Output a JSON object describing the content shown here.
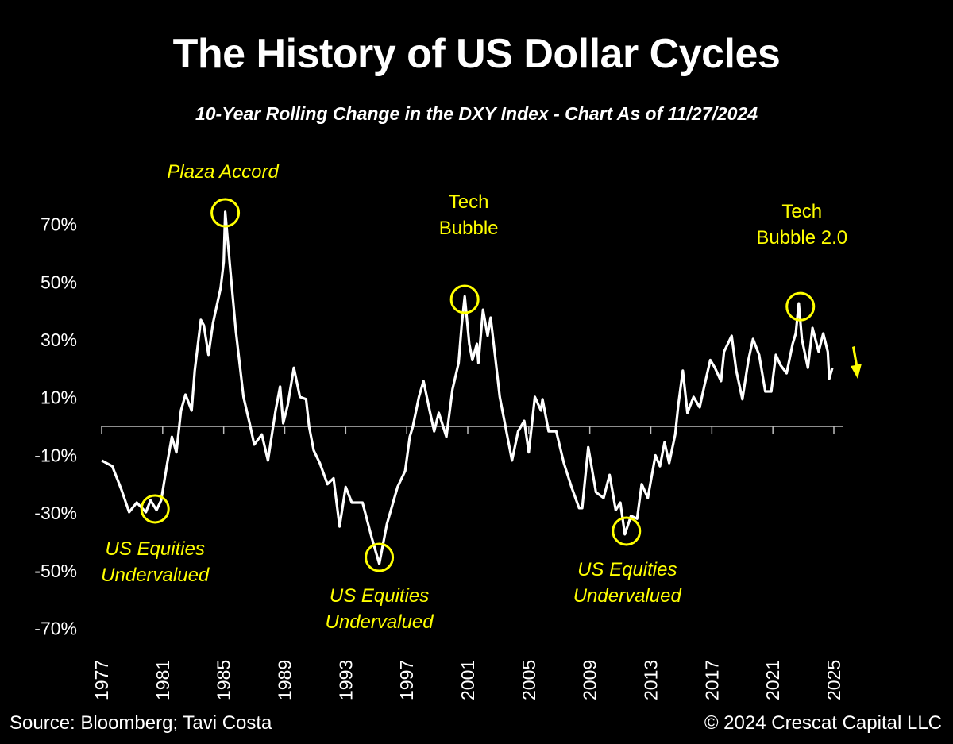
{
  "chart_data": {
    "type": "line",
    "title": "The History of US Dollar Cycles",
    "subtitle": "10-Year Rolling Change in the DXY Index - Chart As of 11/27/2024",
    "xlabel": "",
    "ylabel": "",
    "xlim": [
      1977,
      2025
    ],
    "ylim": [
      -70,
      70
    ],
    "x_ticks": [
      "1977",
      "1981",
      "1985",
      "1989",
      "1993",
      "1997",
      "2001",
      "2005",
      "2009",
      "2013",
      "2017",
      "2021",
      "2025"
    ],
    "y_ticks": [
      "70%",
      "50%",
      "30%",
      "10%",
      "-10%",
      "-30%",
      "-50%",
      "-70%"
    ],
    "y_tick_values": [
      70,
      50,
      30,
      10,
      -10,
      -30,
      -50,
      -70
    ],
    "grid": false,
    "line_color": "#ffffff",
    "annotation_color": "#ffff00",
    "series": [
      {
        "x": [
          1977.0,
          1977.7,
          1978.3,
          1978.8,
          1979.3,
          1979.9,
          1980.2,
          1980.6,
          1980.9,
          1981.3,
          1981.6,
          1981.9,
          1982.2,
          1982.5,
          1982.9,
          1983.1,
          1983.5,
          1983.7,
          1984.0,
          1984.3,
          1984.8,
          1985.0,
          1985.1,
          1985.4,
          1985.8,
          1986.3,
          1986.7,
          1987.0,
          1987.5,
          1987.9,
          1988.4,
          1988.7,
          1988.9,
          1989.2,
          1989.6,
          1990.0,
          1990.4,
          1990.6,
          1990.9,
          1991.3,
          1991.8,
          1992.2,
          1992.6,
          1993.0,
          1993.4,
          1994.1,
          1994.7,
          1995.2,
          1995.7,
          1996.4,
          1996.9,
          1997.2,
          1997.4,
          1997.8,
          1998.1,
          1998.5,
          1998.8,
          1999.1,
          1999.6,
          2000.0,
          2000.4,
          2000.6,
          2000.8,
          2001.1,
          2001.3,
          2001.6,
          2001.7,
          2002.0,
          2002.3,
          2002.5,
          2002.8,
          2003.1,
          2003.5,
          2003.9,
          2004.3,
          2004.7,
          2005.0,
          2005.4,
          2005.8,
          2005.9,
          2006.3,
          2006.8,
          2007.3,
          2007.8,
          2008.3,
          2008.5,
          2008.9,
          2009.4,
          2009.9,
          2010.3,
          2010.7,
          2011.0,
          2011.3,
          2011.7,
          2012.1,
          2012.4,
          2012.8,
          2013.3,
          2013.6,
          2013.9,
          2014.2,
          2014.6,
          2014.8,
          2015.1,
          2015.4,
          2015.8,
          2016.2,
          2016.5,
          2016.9,
          2017.2,
          2017.6,
          2017.8,
          2018.3,
          2018.6,
          2019.0,
          2019.4,
          2019.7,
          2020.1,
          2020.5,
          2020.9,
          2021.2,
          2021.5,
          2021.9,
          2022.3,
          2022.5,
          2022.7,
          2022.9,
          2023.3,
          2023.6,
          2024.0,
          2024.3,
          2024.6,
          2024.7,
          2024.9
        ],
        "y": [
          -11.8,
          -13.8,
          -22,
          -29.7,
          -26.4,
          -29.7,
          -25.6,
          -29,
          -25.6,
          -12.7,
          -3.6,
          -9,
          5.5,
          11,
          5.5,
          19.3,
          36.9,
          35,
          24.8,
          35.8,
          47.9,
          57,
          74.3,
          56,
          33,
          10.2,
          1.1,
          -6.3,
          -2.8,
          -11.8,
          5.5,
          13.8,
          1.1,
          7.4,
          20.3,
          10.2,
          9.4,
          0,
          -8.3,
          -12.7,
          -20,
          -18,
          -34.7,
          -21,
          -26.4,
          -26.4,
          -38.5,
          -47.6,
          -33.8,
          -21,
          -15.4,
          -3.6,
          0,
          10.2,
          15.7,
          5.5,
          -1.7,
          4.7,
          -3.6,
          12.9,
          22,
          35,
          45,
          28.6,
          23,
          28.6,
          22,
          40.4,
          31.4,
          37.7,
          24,
          10.2,
          -0.8,
          -11.8,
          -1.7,
          1.9,
          -9,
          10.2,
          5.5,
          9.4,
          -1.7,
          -1.7,
          -12.7,
          -21,
          -28.3,
          -28.3,
          -7.2,
          -22.8,
          -24.8,
          -16.8,
          -29,
          -26.4,
          -37.4,
          -31,
          -32,
          -20,
          -24.8,
          -10,
          -13.8,
          -5.5,
          -12.7,
          -2.8,
          7.4,
          19.3,
          4.7,
          10.2,
          6.6,
          13.8,
          23,
          20.3,
          15.7,
          25.9,
          31.4,
          19.3,
          9.4,
          23,
          30.3,
          24.8,
          12.1,
          12.1,
          24.8,
          21.2,
          18.4,
          28.6,
          32.2,
          42.6,
          30.3,
          20.3,
          34.1,
          25.9,
          32.2,
          25.9,
          16.5,
          20.3
        ]
      }
    ],
    "annotations": [
      {
        "lines": [
          "Plaza Accord"
        ],
        "x": 1985.1,
        "y": 74
      },
      {
        "lines": [
          "Tech",
          "Bubble"
        ],
        "x": 2000.8,
        "y": 44
      },
      {
        "lines": [
          "Tech",
          "Bubble 2.0"
        ],
        "x": 2022.8,
        "y": 41.5
      },
      {
        "lines": [
          "US Equities",
          "Undervalued"
        ],
        "x": 1980.5,
        "y": -28.6
      },
      {
        "lines": [
          "US Equities",
          "Undervalued"
        ],
        "x": 1995.2,
        "y": -45.4
      },
      {
        "lines": [
          "US Equities",
          "Undervalued"
        ],
        "x": 2011.4,
        "y": -36.3
      }
    ],
    "trend_arrow": "down"
  },
  "footer": {
    "source": "Source: Bloomberg; Tavi Costa",
    "copyright": "© 2024 Crescat Capital LLC"
  }
}
